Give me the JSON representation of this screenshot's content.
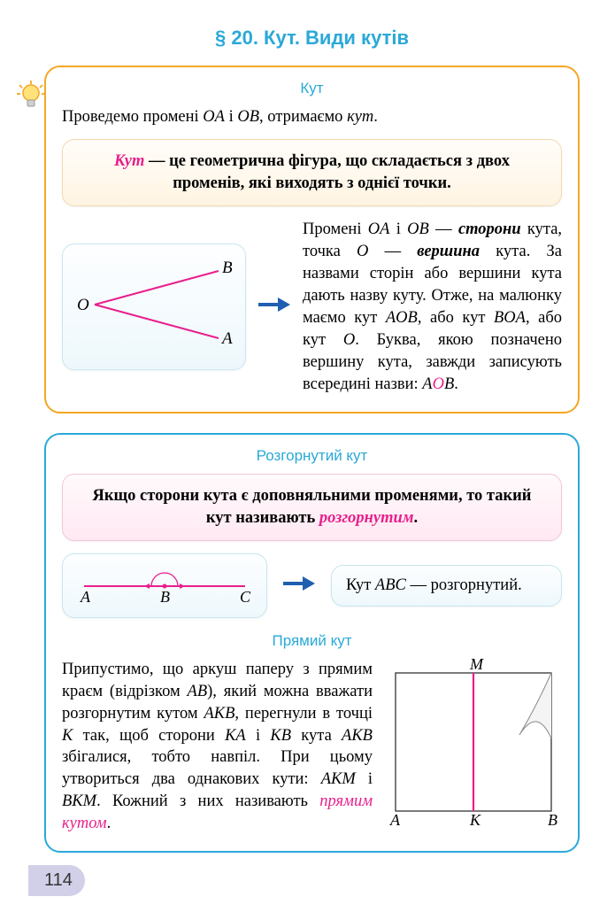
{
  "heading": "§ 20. Кут. Види кутів",
  "section1": {
    "title": "Кут",
    "intro_pre": "Проведемо промені ",
    "intro_oa": "OA",
    "intro_mid": " і ",
    "intro_ob": "OB",
    "intro_post": ", отримаємо ",
    "intro_em": "кут",
    "intro_dot": ".",
    "def_word": "Кут",
    "def_rest": " — це геометрична фігура, що складається з двох променів, які виходять з однієї точки.",
    "diagram": {
      "O": "O",
      "A": "A",
      "B": "B",
      "line_color": "#e91e8c"
    },
    "para_parts": [
      {
        "t": "Промені "
      },
      {
        "t": "OA",
        "i": true
      },
      {
        "t": " і "
      },
      {
        "t": "OB",
        "i": true
      },
      {
        "t": " — "
      },
      {
        "t": "сторони",
        "b": true,
        "i": true
      },
      {
        "t": " кута, точка "
      },
      {
        "t": "O",
        "i": true
      },
      {
        "t": " — "
      },
      {
        "t": "вершина",
        "b": true,
        "i": true
      },
      {
        "t": " кута. За назвами сторін або вершини кута дають назву куту. Отже, на малюнку маємо кут "
      },
      {
        "t": "AOB",
        "i": true
      },
      {
        "t": ", або кут "
      },
      {
        "t": "BOA",
        "i": true
      },
      {
        "t": ", або кут "
      },
      {
        "t": "O",
        "i": true
      },
      {
        "t": ". Буква, якою позначено вершину кута, завжди записують всередині назви: "
      },
      {
        "t": "A",
        "i": true
      },
      {
        "t": "O",
        "i": true,
        "red": true
      },
      {
        "t": "B",
        "i": true
      },
      {
        "t": "."
      }
    ]
  },
  "section2": {
    "title": "Розгорнутий кут",
    "def_pre": "Якщо сторони кута є доповняльними променями, то такий кут називають ",
    "def_em": "розгорнутим",
    "def_dot": ".",
    "diagram": {
      "A": "A",
      "B": "B",
      "C": "C",
      "line_color": "#e91e8c"
    },
    "result_pre": "Кут ",
    "result_abc": "ABC",
    "result_post": " — розгорнутий."
  },
  "section3": {
    "title": "Прямий кут",
    "para_parts": [
      {
        "t": "Припустимо, що аркуш паперу з прямим краєм (відрізком "
      },
      {
        "t": "AB",
        "i": true
      },
      {
        "t": "), який можна вважати розгорнутим кутом "
      },
      {
        "t": "AKB",
        "i": true
      },
      {
        "t": ", перегнули в точці "
      },
      {
        "t": "K",
        "i": true
      },
      {
        "t": " так, щоб сторони "
      },
      {
        "t": "KA",
        "i": true
      },
      {
        "t": " і "
      },
      {
        "t": "KB",
        "i": true
      },
      {
        "t": " кута "
      },
      {
        "t": "AKB",
        "i": true
      },
      {
        "t": " збігалися, тобто навпіл. При цьому утвориться два однакових кути: "
      },
      {
        "t": "AKM",
        "i": true
      },
      {
        "t": " і "
      },
      {
        "t": "BKM",
        "i": true
      },
      {
        "t": ". Кожний з них називають "
      },
      {
        "t": "прямим кутом",
        "pink": true
      },
      {
        "t": "."
      }
    ],
    "diagram": {
      "A": "A",
      "K": "K",
      "B": "B",
      "M": "M",
      "line_color": "#e91e8c"
    }
  },
  "colors": {
    "accent_cyan": "#2aa9d8",
    "accent_orange": "#f5a623",
    "magenta": "#e91e8c",
    "arrow_blue": "#1f5fb0"
  },
  "page_number": "114"
}
